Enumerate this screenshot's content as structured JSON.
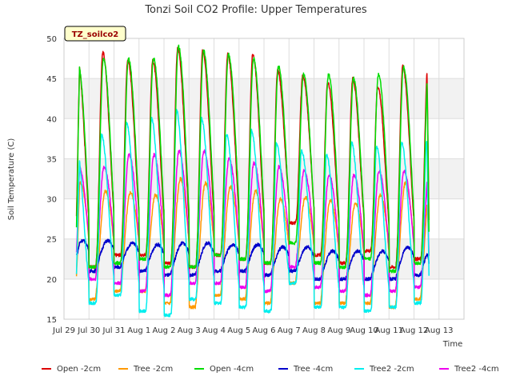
{
  "chart_data": {
    "type": "line",
    "title": "Tonzi Soil CO2 Profile: Upper Temperatures",
    "xlabel": "Time",
    "ylabel": "Soil Temperature (C)",
    "badge": "TZ_soilco2",
    "xlim": [
      0,
      16
    ],
    "ylim": [
      15,
      50
    ],
    "x_ticks": [
      {
        "label": "Jul 29",
        "value": 0
      },
      {
        "label": "Jul 30",
        "value": 1
      },
      {
        "label": "Jul 31",
        "value": 2
      },
      {
        "label": "Aug 1",
        "value": 3
      },
      {
        "label": "Aug 2",
        "value": 4
      },
      {
        "label": "Aug 3",
        "value": 5
      },
      {
        "label": "Aug 4",
        "value": 6
      },
      {
        "label": "Aug 5",
        "value": 7
      },
      {
        "label": "Aug 6",
        "value": 8
      },
      {
        "label": "Aug 7",
        "value": 9
      },
      {
        "label": "Aug 8",
        "value": 10
      },
      {
        "label": "Aug 9",
        "value": 11
      },
      {
        "label": "Aug 10",
        "value": 12
      },
      {
        "label": "Aug 11",
        "value": 13
      },
      {
        "label": "Aug 12",
        "value": 14
      },
      {
        "label": "Aug 13",
        "value": 15
      }
    ],
    "y_ticks": [
      15,
      20,
      25,
      30,
      35,
      40,
      45,
      50
    ],
    "grid": true,
    "legend_position": "bottom",
    "x_start": 0.5,
    "x_end": 14.6,
    "series": [
      {
        "name": "Open -2cm",
        "color": "#dd0000",
        "mins": [
          22.5,
          21.5,
          23,
          23,
          22,
          21.5,
          23,
          22.5,
          22,
          27,
          23,
          22,
          23.5,
          21.5,
          22.5
        ],
        "maxs": [
          47.2,
          48.3,
          47.3,
          47.2,
          48.8,
          48.5,
          48,
          48,
          46,
          45.3,
          44.5,
          45,
          44,
          46.5
        ],
        "start": 27.7,
        "end": 27.5,
        "peak": 0.55,
        "sharp": 2.5
      },
      {
        "name": "Tree -2cm",
        "color": "#ff9900",
        "mins": [
          18,
          17.5,
          18.5,
          18.5,
          17,
          16.5,
          18,
          17.5,
          17,
          19.5,
          17,
          17,
          17,
          16.5,
          17.5
        ],
        "maxs": [
          32,
          31,
          30.8,
          30.5,
          32.5,
          32,
          31.5,
          31,
          30,
          30.2,
          29.8,
          29.5,
          30.5,
          32
        ],
        "start": 20.5,
        "end": 23,
        "peak": 0.66,
        "sharp": 1.5
      },
      {
        "name": "Open -4cm",
        "color": "#00dd00",
        "mins": [
          22,
          21.5,
          22,
          22.5,
          21.5,
          21.5,
          23,
          22.5,
          22,
          24.5,
          22,
          21.5,
          22.5,
          21,
          22
        ],
        "maxs": [
          46.5,
          47.5,
          47.5,
          47.5,
          49,
          48.5,
          48,
          47.5,
          46.5,
          45.5,
          45.5,
          45,
          45.5,
          46.5
        ],
        "start": 26.5,
        "end": 26,
        "peak": 0.58,
        "sharp": 2.3
      },
      {
        "name": "Tree -4cm",
        "color": "#0000cc",
        "mins": [
          21.5,
          21,
          21.5,
          21,
          20.5,
          20.5,
          21,
          21,
          20.5,
          21,
          20,
          20,
          20,
          20,
          20.5
        ],
        "maxs": [
          24.8,
          24.8,
          24.5,
          24.3,
          24.5,
          24.5,
          24.3,
          24.3,
          24,
          24,
          23.5,
          23.5,
          23.5,
          24,
          24.3
        ],
        "start": 23,
        "end": 22,
        "peak": 0.75,
        "sharp": 1.2
      },
      {
        "name": "Tree2 -2cm",
        "color": "#00eeee",
        "mins": [
          17,
          17,
          18,
          16,
          15.5,
          17.5,
          17,
          16.5,
          16,
          19.5,
          16.5,
          16.5,
          16,
          16.5,
          17
        ],
        "maxs": [
          36.5,
          38,
          39.5,
          40,
          41,
          40,
          38,
          38.5,
          37,
          36,
          35.5,
          37,
          36.5,
          37
        ],
        "start": 20.5,
        "end": 20.5,
        "peak": 0.5,
        "sharp": 3.0
      },
      {
        "name": "Tree2 -4cm",
        "color": "#ee00ee",
        "mins": [
          20,
          20,
          19.5,
          18.5,
          18,
          19.5,
          19.5,
          19,
          18.5,
          21.5,
          19,
          18.5,
          18,
          18.5,
          19
        ],
        "maxs": [
          34,
          34,
          35.5,
          35.5,
          36,
          36,
          35,
          34.5,
          34,
          33.5,
          33,
          33,
          33.5,
          33.5
        ],
        "start": 23.5,
        "end": 23,
        "peak": 0.6,
        "sharp": 1.8
      }
    ]
  }
}
